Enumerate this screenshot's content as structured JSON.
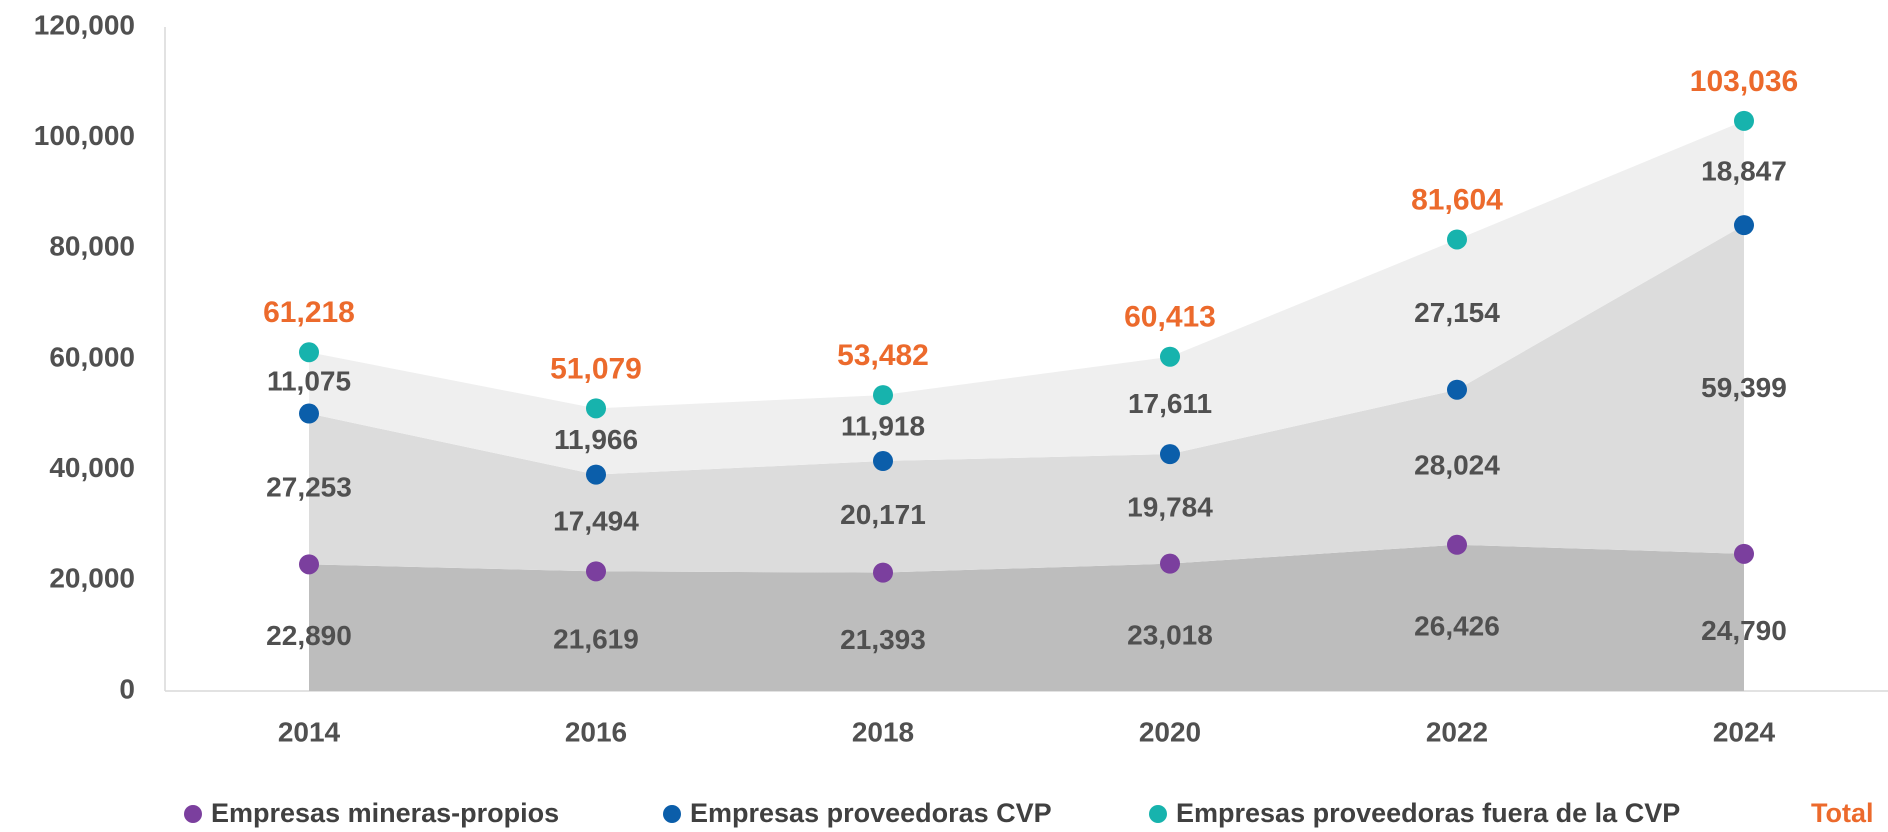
{
  "chart_data": {
    "type": "stacked-area",
    "x": [
      "2014",
      "2016",
      "2018",
      "2020",
      "2022",
      "2024"
    ],
    "series": [
      {
        "name": "Empresas mineras-propios",
        "color": "#7b3f9e",
        "area_color": "#bdbdbd",
        "values": [
          22890,
          21619,
          21393,
          23018,
          26426,
          24790
        ]
      },
      {
        "name": "Empresas proveedoras CVP",
        "color": "#0b5eaa",
        "area_color": "#dcdcdc",
        "values": [
          27253,
          17494,
          20171,
          19784,
          28024,
          59399
        ]
      },
      {
        "name": "Empresas proveedoras fuera de la CVP",
        "color": "#17b3ad",
        "area_color": "#efefef",
        "values": [
          11075,
          11966,
          11918,
          17611,
          27154,
          18847
        ]
      }
    ],
    "total": {
      "name": "Total",
      "color": "#ec6a2c",
      "values": [
        61218,
        51079,
        53482,
        60413,
        81604,
        103036
      ],
      "value_labels": [
        "61,218",
        "51,079",
        "53,482",
        "60,413",
        "81,604",
        "103,036"
      ]
    },
    "value_labels": [
      [
        "22,890",
        "21,619",
        "21,393",
        "23,018",
        "26,426",
        "24,790"
      ],
      [
        "27,253",
        "17,494",
        "20,171",
        "19,784",
        "28,024",
        "59,399"
      ],
      [
        "11,075",
        "11,966",
        "11,918",
        "17,611",
        "27,154",
        "18,847"
      ]
    ],
    "ylim": [
      0,
      120000
    ],
    "yticks": [
      0,
      {
        "value": 20000,
        "label": "20,000"
      },
      {
        "value": 40000,
        "label": "40,000"
      },
      {
        "value": 60000,
        "label": "60,000"
      },
      {
        "value": 80000,
        "label": "80,000"
      },
      {
        "value": 100000,
        "label": "100,000"
      },
      {
        "value": 120000,
        "label": "120,000"
      }
    ],
    "grid": false
  }
}
